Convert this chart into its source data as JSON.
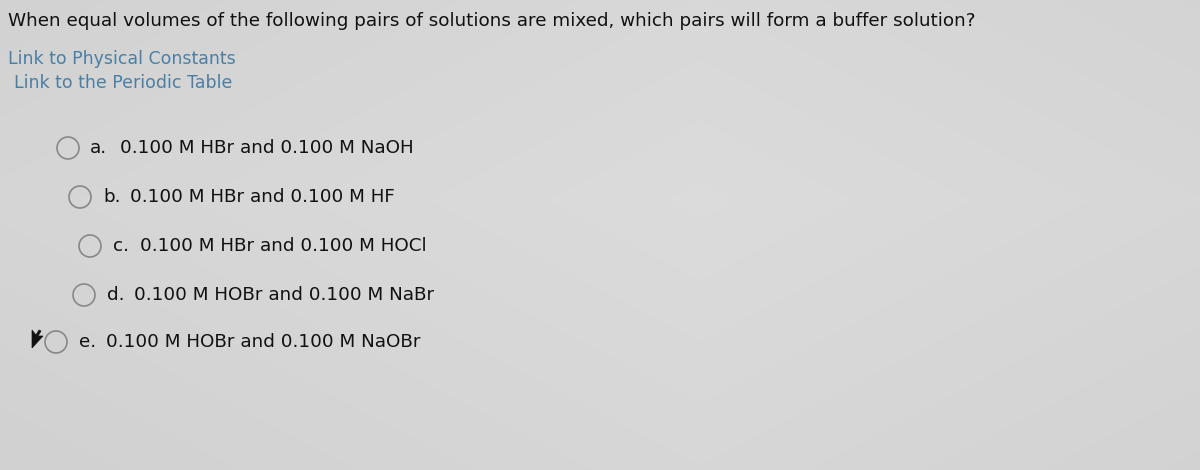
{
  "background_color": "#cccccc",
  "title": "When equal volumes of the following pairs of solutions are mixed, which pairs will form a buffer solution?",
  "title_fontsize": 13.2,
  "title_color": "#111111",
  "link1": "Link to Physical Constants",
  "link2": "Link to the Periodic Table",
  "link_color": "#4a7fa5",
  "link_fontsize": 12.5,
  "options": [
    {
      "label": "a.",
      "text": "0.100 M HBr and 0.100 M NaOH",
      "indent": 0.0
    },
    {
      "label": "b.",
      "text": "0.100 M HBr and 0.100 M HF",
      "indent": 0.01
    },
    {
      "label": "c.",
      "text": "0.100 M HBr and 0.100 M HOCl",
      "indent": 0.02
    },
    {
      "label": "d.",
      "text": "0.100 M HOBr and 0.100 M NaBr",
      "indent": 0.015
    },
    {
      "label": "e.",
      "text": "0.100 M HOBr and 0.100 M NaOBr",
      "indent": 0.0
    }
  ],
  "option_fontsize": 13.2,
  "option_color": "#111111",
  "circle_color": "#888888",
  "circle_linewidth": 1.2
}
